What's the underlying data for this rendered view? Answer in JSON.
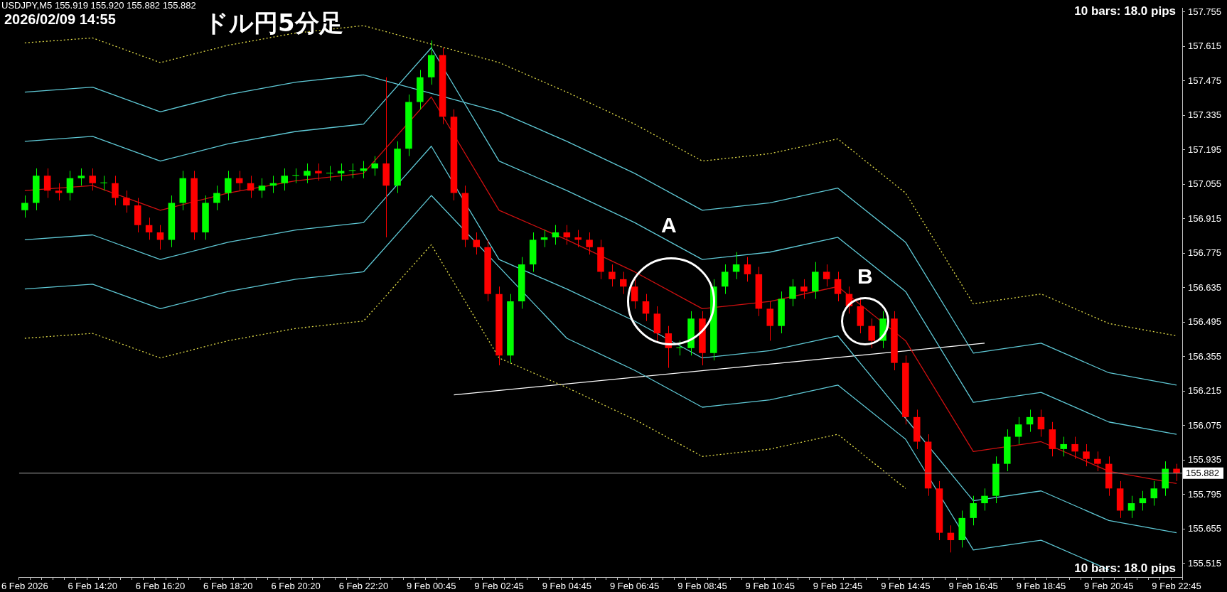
{
  "chart_data": {
    "type": "candlestick",
    "title": "ドル円5分足",
    "annotations": [
      "USDJPY,M5  155.919 155.920 155.882 155.882",
      "2026/02/09 14:55",
      "10 bars: 18.0 pips",
      "10 bars: 18.0 pips",
      "A",
      "B"
    ],
    "categories": [
      "6 Feb 2026",
      null,
      null,
      null,
      null,
      null,
      "6 Feb 14:20",
      null,
      null,
      null,
      null,
      null,
      "6 Feb 16:20",
      null,
      null,
      null,
      null,
      null,
      "6 Feb 18:20",
      null,
      null,
      null,
      null,
      null,
      "6 Feb 20:20",
      null,
      null,
      null,
      null,
      null,
      "6 Feb 22:20",
      null,
      null,
      null,
      null,
      null,
      "9 Feb 00:45",
      null,
      null,
      null,
      null,
      null,
      "9 Feb 02:45",
      null,
      null,
      null,
      null,
      null,
      "9 Feb 04:45",
      null,
      null,
      null,
      null,
      null,
      "9 Feb 06:45",
      null,
      null,
      null,
      null,
      null,
      "9 Feb 08:45",
      null,
      null,
      null,
      null,
      null,
      "9 Feb 10:45",
      null,
      null,
      null,
      null,
      null,
      "9 Feb 12:45",
      null,
      null,
      null,
      null,
      null,
      "9 Feb 14:45",
      null,
      null,
      null,
      null,
      null,
      "9 Feb 16:45",
      null,
      null,
      null,
      null,
      null,
      "9 Feb 18:45",
      null,
      null,
      null,
      null,
      null,
      "9 Feb 20:45",
      null,
      null,
      null,
      null,
      null,
      "9 Feb 22:45"
    ],
    "ohlc": [
      [
        156.95,
        157.01,
        156.92,
        156.98
      ],
      [
        156.98,
        157.12,
        156.95,
        157.09
      ],
      [
        157.09,
        157.12,
        157.0,
        157.03
      ],
      [
        157.03,
        157.06,
        156.99,
        157.02
      ],
      [
        157.02,
        157.11,
        156.99,
        157.08
      ],
      [
        157.08,
        157.12,
        157.05,
        157.09
      ],
      [
        157.09,
        157.12,
        157.03,
        157.06
      ],
      [
        157.06,
        157.09,
        157.03,
        157.06
      ],
      [
        157.06,
        157.09,
        156.97,
        157.0
      ],
      [
        157.0,
        157.03,
        156.94,
        156.97
      ],
      [
        156.97,
        157.0,
        156.86,
        156.89
      ],
      [
        156.89,
        156.92,
        156.83,
        156.86
      ],
      [
        156.86,
        156.89,
        156.79,
        156.83
      ],
      [
        156.83,
        157.01,
        156.8,
        156.98
      ],
      [
        156.98,
        157.11,
        156.95,
        157.08
      ],
      [
        157.08,
        157.11,
        156.83,
        156.86
      ],
      [
        156.86,
        157.01,
        156.83,
        156.98
      ],
      [
        156.98,
        157.05,
        156.95,
        157.02
      ],
      [
        157.02,
        157.11,
        156.99,
        157.08
      ],
      [
        157.08,
        157.11,
        157.03,
        157.06
      ],
      [
        157.06,
        157.09,
        157.0,
        157.03
      ],
      [
        157.03,
        157.08,
        157.0,
        157.05
      ],
      [
        157.05,
        157.09,
        157.02,
        157.06
      ],
      [
        157.06,
        157.12,
        157.03,
        157.09
      ],
      [
        157.09,
        157.12,
        157.06,
        157.09
      ],
      [
        157.09,
        157.14,
        157.06,
        157.11
      ],
      [
        157.11,
        157.14,
        157.07,
        157.1
      ],
      [
        157.1,
        157.13,
        157.07,
        157.1
      ],
      [
        157.1,
        157.14,
        157.07,
        157.11
      ],
      [
        157.11,
        157.14,
        157.08,
        157.11
      ],
      [
        157.11,
        157.15,
        157.08,
        157.12
      ],
      [
        157.12,
        157.17,
        157.09,
        157.14
      ],
      [
        157.14,
        157.49,
        156.84,
        157.05
      ],
      [
        157.05,
        157.23,
        157.02,
        157.2
      ],
      [
        157.2,
        157.42,
        157.17,
        157.39
      ],
      [
        157.39,
        157.52,
        157.36,
        157.49
      ],
      [
        157.49,
        157.64,
        157.46,
        157.58
      ],
      [
        157.58,
        157.61,
        157.3,
        157.33
      ],
      [
        157.33,
        157.36,
        156.99,
        157.02
      ],
      [
        157.02,
        157.05,
        156.8,
        156.83
      ],
      [
        156.83,
        156.86,
        156.77,
        156.8
      ],
      [
        156.8,
        156.83,
        156.58,
        156.61
      ],
      [
        156.61,
        156.64,
        156.32,
        156.36
      ],
      [
        156.36,
        156.61,
        156.33,
        156.58
      ],
      [
        156.58,
        156.76,
        156.55,
        156.73
      ],
      [
        156.73,
        156.86,
        156.7,
        156.83
      ],
      [
        156.83,
        156.87,
        156.8,
        156.84
      ],
      [
        156.84,
        156.89,
        156.81,
        156.86
      ],
      [
        156.86,
        156.89,
        156.81,
        156.84
      ],
      [
        156.84,
        156.87,
        156.8,
        156.83
      ],
      [
        156.83,
        156.86,
        156.77,
        156.8
      ],
      [
        156.8,
        156.83,
        156.67,
        156.7
      ],
      [
        156.7,
        156.73,
        156.64,
        156.67
      ],
      [
        156.67,
        156.7,
        156.61,
        156.64
      ],
      [
        156.64,
        156.67,
        156.55,
        156.58
      ],
      [
        156.58,
        156.61,
        156.5,
        156.53
      ],
      [
        156.53,
        156.56,
        156.42,
        156.45
      ],
      [
        156.45,
        156.48,
        156.31,
        156.39
      ],
      [
        156.39,
        156.42,
        156.36,
        156.39
      ],
      [
        156.39,
        156.54,
        156.36,
        156.51
      ],
      [
        156.51,
        156.54,
        156.32,
        156.37
      ],
      [
        156.37,
        156.67,
        156.34,
        156.64
      ],
      [
        156.64,
        156.73,
        156.61,
        156.7
      ],
      [
        156.7,
        156.78,
        156.67,
        156.73
      ],
      [
        156.73,
        156.76,
        156.66,
        156.69
      ],
      [
        156.69,
        156.72,
        156.52,
        156.55
      ],
      [
        156.55,
        156.58,
        156.42,
        156.48
      ],
      [
        156.48,
        156.62,
        156.45,
        156.59
      ],
      [
        156.59,
        156.67,
        156.56,
        156.64
      ],
      [
        156.64,
        156.67,
        156.59,
        156.62
      ],
      [
        156.62,
        156.74,
        156.59,
        156.7
      ],
      [
        156.7,
        156.73,
        156.64,
        156.67
      ],
      [
        156.67,
        156.7,
        156.58,
        156.61
      ],
      [
        156.61,
        156.64,
        156.53,
        156.56
      ],
      [
        156.56,
        156.59,
        156.45,
        156.48
      ],
      [
        156.48,
        156.51,
        156.39,
        156.42
      ],
      [
        156.42,
        156.54,
        156.39,
        156.51
      ],
      [
        156.51,
        156.54,
        156.3,
        156.33
      ],
      [
        156.33,
        156.36,
        156.08,
        156.11
      ],
      [
        156.11,
        156.14,
        155.98,
        156.01
      ],
      [
        156.01,
        156.04,
        155.79,
        155.82
      ],
      [
        155.82,
        155.85,
        155.61,
        155.64
      ],
      [
        155.64,
        155.67,
        155.56,
        155.61
      ],
      [
        155.61,
        155.73,
        155.58,
        155.7
      ],
      [
        155.7,
        155.79,
        155.67,
        155.76
      ],
      [
        155.76,
        155.82,
        155.73,
        155.79
      ],
      [
        155.79,
        155.95,
        155.76,
        155.92
      ],
      [
        155.92,
        156.06,
        155.89,
        156.03
      ],
      [
        156.03,
        156.11,
        156.0,
        156.08
      ],
      [
        156.08,
        156.14,
        156.05,
        156.11
      ],
      [
        156.11,
        156.14,
        156.03,
        156.06
      ],
      [
        156.06,
        156.09,
        155.95,
        155.98
      ],
      [
        155.98,
        156.03,
        155.95,
        156.0
      ],
      [
        156.0,
        156.03,
        155.94,
        155.97
      ],
      [
        155.97,
        156.0,
        155.91,
        155.94
      ],
      [
        155.94,
        155.97,
        155.89,
        155.92
      ],
      [
        155.92,
        155.95,
        155.79,
        155.82
      ],
      [
        155.82,
        155.85,
        155.7,
        155.73
      ],
      [
        155.73,
        155.79,
        155.7,
        155.76
      ],
      [
        155.76,
        155.81,
        155.73,
        155.78
      ],
      [
        155.78,
        155.85,
        155.75,
        155.82
      ],
      [
        155.82,
        155.93,
        155.79,
        155.9
      ],
      [
        155.9,
        155.92,
        155.85,
        155.882
      ]
    ],
    "colors": [
      "#00ff00",
      "#00ff00",
      "#ff0000",
      "#ff0000",
      "#00ff00",
      "#00ff00",
      "#ff0000",
      "#00ff00",
      "#ff0000",
      "#ff0000",
      "#ff0000",
      "#ff0000",
      "#ff0000",
      "#00ff00",
      "#00ff00",
      "#ff0000",
      "#00ff00",
      "#00ff00",
      "#00ff00",
      "#ff0000",
      "#ff0000",
      "#00ff00",
      "#00ff00",
      "#00ff00",
      "#00ff00",
      "#00ff00",
      "#ff0000",
      "#00ff00",
      "#00ff00",
      "#00ff00",
      "#00ff00",
      "#00ff00",
      "#ff0000",
      "#00ff00",
      "#00ff00",
      "#00ff00",
      "#00ff00",
      "#ff0000",
      "#ff0000",
      "#ff0000",
      "#ff0000",
      "#ff0000",
      "#ff0000",
      "#00ff00",
      "#00ff00",
      "#00ff00",
      "#00ff00",
      "#00ff00",
      "#ff0000",
      "#ff0000",
      "#ff0000",
      "#ff0000",
      "#ff0000",
      "#ff0000",
      "#ff0000",
      "#ff0000",
      "#ff0000",
      "#ff0000",
      "#00ff00",
      "#00ff00",
      "#ff0000",
      "#00ff00",
      "#00ff00",
      "#00ff00",
      "#ff0000",
      "#ff0000",
      "#ff0000",
      "#00ff00",
      "#00ff00",
      "#ff0000",
      "#00ff00",
      "#ff0000",
      "#ff0000",
      "#ff0000",
      "#ff0000",
      "#ff0000",
      "#00ff00",
      "#ff0000",
      "#ff0000",
      "#ff0000",
      "#ff0000",
      "#ff0000",
      "#ff0000",
      "#00ff00",
      "#00ff00",
      "#00ff00",
      "#00ff00",
      "#00ff00",
      "#00ff00",
      "#00ff00",
      "#ff0000",
      "#ff0000",
      "#00ff00",
      "#ff0000",
      "#ff0000",
      "#ff0000",
      "#ff0000",
      "#ff0000",
      "#00ff00",
      "#00ff00",
      "#00ff00",
      "#00ff00",
      "#ff0000"
    ],
    "series": [
      {
        "type": "line",
        "color": "#d01010",
        "line_style": "solid",
        "values": [
          157.03,
          null,
          null,
          null,
          null,
          null,
          157.05,
          null,
          null,
          null,
          null,
          null,
          156.95,
          null,
          null,
          null,
          null,
          null,
          157.02,
          null,
          null,
          null,
          null,
          null,
          157.07,
          null,
          null,
          null,
          null,
          null,
          157.1,
          null,
          null,
          null,
          null,
          null,
          157.41,
          null,
          null,
          null,
          null,
          null,
          156.95,
          null,
          null,
          null,
          null,
          null,
          156.83,
          null,
          null,
          null,
          null,
          null,
          156.7,
          null,
          null,
          null,
          null,
          null,
          156.55,
          null,
          null,
          null,
          null,
          null,
          156.58,
          null,
          null,
          null,
          null,
          null,
          156.64,
          null,
          null,
          null,
          null,
          null,
          156.42,
          null,
          null,
          null,
          null,
          null,
          155.97,
          null,
          null,
          null,
          null,
          null,
          156.01,
          null,
          null,
          null,
          null,
          null,
          155.89,
          null,
          null,
          null,
          null,
          null,
          155.84
        ]
      },
      {
        "type": "line",
        "color": "#5fc9d6",
        "line_style": "solid",
        "values": [
          157.23,
          null,
          null,
          null,
          null,
          null,
          157.25,
          null,
          null,
          null,
          null,
          null,
          157.15,
          null,
          null,
          null,
          null,
          null,
          157.22,
          null,
          null,
          null,
          null,
          null,
          157.27,
          null,
          null,
          null,
          null,
          null,
          157.3,
          null,
          null,
          null,
          null,
          null,
          157.61,
          null,
          null,
          null,
          null,
          null,
          157.15,
          null,
          null,
          null,
          null,
          null,
          157.03,
          null,
          null,
          null,
          null,
          null,
          156.9,
          null,
          null,
          null,
          null,
          null,
          156.75,
          null,
          null,
          null,
          null,
          null,
          156.78,
          null,
          null,
          null,
          null,
          null,
          156.84,
          null,
          null,
          null,
          null,
          null,
          156.62,
          null,
          null,
          null,
          null,
          null,
          156.17,
          null,
          null,
          null,
          null,
          null,
          156.21,
          null,
          null,
          null,
          null,
          null,
          156.09,
          null,
          null,
          null,
          null,
          null,
          156.04
        ]
      },
      {
        "type": "line",
        "color": "#5fc9d6",
        "line_style": "solid",
        "values": [
          157.43,
          null,
          null,
          null,
          null,
          null,
          157.45,
          null,
          null,
          null,
          null,
          null,
          157.35,
          null,
          null,
          null,
          null,
          null,
          157.42,
          null,
          null,
          null,
          null,
          null,
          157.47,
          null,
          null,
          null,
          null,
          null,
          157.5,
          null,
          null,
          null,
          null,
          null,
          null,
          null,
          null,
          null,
          null,
          null,
          157.35,
          null,
          null,
          null,
          null,
          null,
          157.23,
          null,
          null,
          null,
          null,
          null,
          157.1,
          null,
          null,
          null,
          null,
          null,
          156.95,
          null,
          null,
          null,
          null,
          null,
          156.98,
          null,
          null,
          null,
          null,
          null,
          157.04,
          null,
          null,
          null,
          null,
          null,
          156.82,
          null,
          null,
          null,
          null,
          null,
          156.37,
          null,
          null,
          null,
          null,
          null,
          156.41,
          null,
          null,
          null,
          null,
          null,
          156.29,
          null,
          null,
          null,
          null,
          null,
          156.24
        ]
      },
      {
        "type": "line",
        "color": "#e6e04a",
        "line_style": "dotted",
        "values": [
          157.63,
          null,
          null,
          null,
          null,
          null,
          157.65,
          null,
          null,
          null,
          null,
          null,
          157.55,
          null,
          null,
          null,
          null,
          null,
          157.62,
          null,
          null,
          null,
          null,
          null,
          157.67,
          null,
          null,
          null,
          null,
          null,
          157.7,
          null,
          null,
          null,
          null,
          null,
          null,
          null,
          null,
          null,
          null,
          null,
          157.55,
          null,
          null,
          null,
          null,
          null,
          157.43,
          null,
          null,
          null,
          null,
          null,
          157.3,
          null,
          null,
          null,
          null,
          null,
          157.15,
          null,
          null,
          null,
          null,
          null,
          157.18,
          null,
          null,
          null,
          null,
          null,
          157.24,
          null,
          null,
          null,
          null,
          null,
          157.02,
          null,
          null,
          null,
          null,
          null,
          156.57,
          null,
          null,
          null,
          null,
          null,
          156.61,
          null,
          null,
          null,
          null,
          null,
          156.49,
          null,
          null,
          null,
          null,
          null,
          156.44
        ]
      },
      {
        "type": "line",
        "color": "#5fc9d6",
        "line_style": "solid",
        "values": [
          156.83,
          null,
          null,
          null,
          null,
          null,
          156.85,
          null,
          null,
          null,
          null,
          null,
          156.75,
          null,
          null,
          null,
          null,
          null,
          156.82,
          null,
          null,
          null,
          null,
          null,
          156.87,
          null,
          null,
          null,
          null,
          null,
          156.9,
          null,
          null,
          null,
          null,
          null,
          157.21,
          null,
          null,
          null,
          null,
          null,
          156.75,
          null,
          null,
          null,
          null,
          null,
          156.63,
          null,
          null,
          null,
          null,
          null,
          156.5,
          null,
          null,
          null,
          null,
          null,
          156.35,
          null,
          null,
          null,
          null,
          null,
          156.38,
          null,
          null,
          null,
          null,
          null,
          156.44,
          null,
          null,
          null,
          null,
          null,
          null,
          null,
          null,
          null,
          null,
          null,
          155.77,
          null,
          null,
          null,
          null,
          null,
          155.81,
          null,
          null,
          null,
          null,
          null,
          155.69,
          null,
          null,
          null,
          null,
          null,
          155.64
        ]
      },
      {
        "type": "line",
        "color": "#5fc9d6",
        "line_style": "solid",
        "values": [
          156.63,
          null,
          null,
          null,
          null,
          null,
          156.65,
          null,
          null,
          null,
          null,
          null,
          156.55,
          null,
          null,
          null,
          null,
          null,
          156.62,
          null,
          null,
          null,
          null,
          null,
          156.67,
          null,
          null,
          null,
          null,
          null,
          156.7,
          null,
          null,
          null,
          null,
          null,
          157.01,
          null,
          null,
          null,
          null,
          null,
          null,
          null,
          null,
          null,
          null,
          null,
          156.43,
          null,
          null,
          null,
          null,
          null,
          156.3,
          null,
          null,
          null,
          null,
          null,
          156.15,
          null,
          null,
          null,
          null,
          null,
          156.18,
          null,
          null,
          null,
          null,
          null,
          156.24,
          null,
          null,
          null,
          null,
          null,
          156.02,
          null,
          null,
          null,
          null,
          null,
          155.57,
          null,
          null,
          null,
          null,
          null,
          155.61,
          null,
          null,
          null,
          null,
          null,
          155.49,
          null,
          null,
          null,
          null,
          null,
          null
        ]
      },
      {
        "type": "line",
        "color": "#e6e04a",
        "line_style": "dotted",
        "values": [
          156.43,
          null,
          null,
          null,
          null,
          null,
          156.45,
          null,
          null,
          null,
          null,
          null,
          156.35,
          null,
          null,
          null,
          null,
          null,
          156.42,
          null,
          null,
          null,
          null,
          null,
          156.47,
          null,
          null,
          null,
          null,
          null,
          156.5,
          null,
          null,
          null,
          null,
          null,
          156.81,
          null,
          null,
          null,
          null,
          null,
          156.35,
          null,
          null,
          null,
          null,
          null,
          156.23,
          null,
          null,
          null,
          null,
          null,
          156.1,
          null,
          null,
          null,
          null,
          null,
          155.95,
          null,
          null,
          null,
          null,
          null,
          155.98,
          null,
          null,
          null,
          null,
          null,
          156.04,
          null,
          null,
          null,
          null,
          null,
          155.82,
          null,
          null,
          null,
          null,
          null,
          null,
          null,
          null,
          null,
          null,
          null,
          null,
          null,
          null,
          null,
          null,
          null,
          null,
          null,
          null,
          null,
          null,
          null,
          null
        ]
      },
      {
        "type": "line",
        "color": "#ffffff",
        "line_style": "solid",
        "values": [
          null,
          null,
          null,
          null,
          null,
          null,
          null,
          null,
          null,
          null,
          null,
          null,
          null,
          null,
          null,
          null,
          null,
          null,
          null,
          null,
          null,
          null,
          null,
          null,
          null,
          null,
          null,
          null,
          null,
          null,
          null,
          null,
          null,
          null,
          null,
          null,
          null,
          null,
          156.2,
          null,
          null,
          null,
          null,
          null,
          null,
          null,
          null,
          null,
          null,
          null,
          null,
          null,
          null,
          null,
          null,
          null,
          null,
          null,
          null,
          null,
          null,
          null,
          null,
          null,
          null,
          null,
          null,
          null,
          null,
          null,
          null,
          null,
          null,
          null,
          null,
          null,
          null,
          null,
          null,
          null,
          null,
          null,
          null,
          null,
          null,
          156.41,
          null,
          null,
          null,
          null,
          null,
          null,
          null,
          null,
          null,
          null,
          null,
          null,
          null,
          null,
          null,
          null,
          null
        ]
      }
    ],
    "ylim": [
      155.46,
      157.77
    ],
    "yticks": [
      155.515,
      155.655,
      155.795,
      155.935,
      156.075,
      156.215,
      156.355,
      156.495,
      156.635,
      156.775,
      156.915,
      157.055,
      157.195,
      157.335,
      157.475,
      157.615,
      157.755
    ],
    "ref_lines": [
      {
        "axis": "y",
        "value": 155.882,
        "label": "155.882",
        "color": "#a0a0a0"
      }
    ],
    "grid": false,
    "legend": false,
    "marker": "none"
  }
}
